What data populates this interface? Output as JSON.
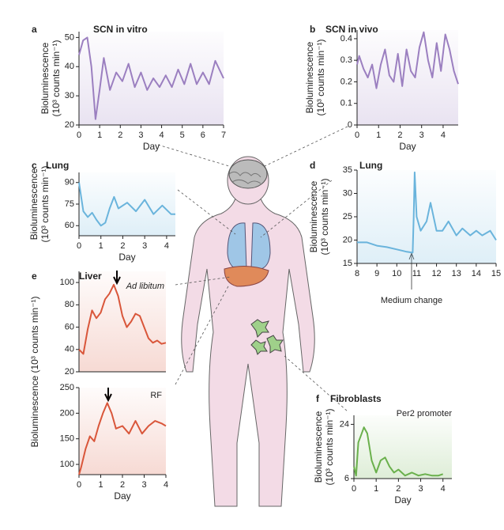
{
  "chart_data": [
    {
      "type": "line",
      "panel": "a",
      "title": "SCN in vitro",
      "xlabel": "Day",
      "ylabel": [
        "Bioluminescence",
        "(10³ counts min⁻¹)"
      ],
      "color": "#9b7fc0",
      "xlim": [
        0,
        7
      ],
      "xticks": [
        0,
        1,
        2,
        3,
        4,
        5,
        6,
        7
      ],
      "ylim": [
        20,
        52
      ],
      "yticks": [
        20,
        30,
        40,
        50
      ],
      "x": [
        0,
        0.2,
        0.4,
        0.6,
        0.8,
        1.0,
        1.2,
        1.5,
        1.8,
        2.1,
        2.4,
        2.7,
        3.0,
        3.3,
        3.6,
        3.9,
        4.2,
        4.5,
        4.8,
        5.1,
        5.4,
        5.7,
        6.0,
        6.3,
        6.6,
        7.0
      ],
      "values": [
        44,
        49,
        50,
        40,
        22,
        32,
        43,
        32,
        38,
        35,
        41,
        33,
        38,
        32,
        36,
        33,
        37,
        33,
        39,
        34,
        41,
        34,
        38,
        34,
        42,
        36
      ],
      "annotations": []
    },
    {
      "type": "line",
      "panel": "b",
      "title": "SCN in vivo",
      "xlabel": "Day",
      "ylabel": [
        "Bioluminescence",
        "(10³ counts min⁻¹)"
      ],
      "color": "#9b7fc0",
      "xlim": [
        0,
        4.7
      ],
      "xticks": [
        0,
        1,
        2,
        3,
        4
      ],
      "ylim": [
        0,
        0.44
      ],
      "yticks": [
        0,
        0.1,
        0.2,
        0.3,
        0.4
      ],
      "x": [
        0,
        0.1,
        0.3,
        0.5,
        0.7,
        0.9,
        1.1,
        1.3,
        1.5,
        1.7,
        1.9,
        2.1,
        2.3,
        2.5,
        2.7,
        2.9,
        3.1,
        3.3,
        3.5,
        3.7,
        3.9,
        4.1,
        4.3,
        4.5,
        4.7
      ],
      "values": [
        0.28,
        0.32,
        0.26,
        0.22,
        0.28,
        0.17,
        0.28,
        0.35,
        0.23,
        0.2,
        0.33,
        0.18,
        0.35,
        0.25,
        0.22,
        0.36,
        0.43,
        0.3,
        0.22,
        0.38,
        0.25,
        0.42,
        0.35,
        0.25,
        0.19
      ],
      "annotations": []
    },
    {
      "type": "line",
      "panel": "c",
      "title": "Lung",
      "xlabel": "Day",
      "ylabel": [
        "Bioluminescence",
        "(10³ counts min⁻¹)"
      ],
      "color": "#6ab4dc",
      "xlim": [
        0,
        4.4
      ],
      "xticks": [
        0,
        1,
        2,
        3,
        4
      ],
      "ylim": [
        53,
        97
      ],
      "yticks": [
        60,
        75,
        90
      ],
      "x": [
        0,
        0.2,
        0.4,
        0.6,
        0.8,
        1.0,
        1.2,
        1.4,
        1.6,
        1.8,
        2.2,
        2.6,
        3.0,
        3.4,
        3.8,
        4.2,
        4.4
      ],
      "values": [
        90,
        70,
        66,
        69,
        64,
        60,
        62,
        72,
        80,
        72,
        76,
        70,
        78,
        68,
        74,
        68,
        68
      ],
      "annotations": []
    },
    {
      "type": "line",
      "panel": "d",
      "title": "Lung",
      "xlabel": "",
      "ylabel": [
        "Bioluminescence",
        "(10³ counts min⁻¹)"
      ],
      "color": "#6ab4dc",
      "xlim": [
        8,
        15
      ],
      "xticks": [
        8,
        9,
        10,
        11,
        12,
        13,
        14,
        15
      ],
      "ylim": [
        15,
        35
      ],
      "yticks": [
        15,
        20,
        25,
        30,
        35
      ],
      "x": [
        8,
        8.5,
        9,
        9.5,
        10,
        10.5,
        10.8,
        10.85,
        10.9,
        11.0,
        11.2,
        11.5,
        11.7,
        12,
        12.3,
        12.6,
        13,
        13.3,
        13.7,
        14,
        14.3,
        14.7,
        15
      ],
      "values": [
        19.5,
        19.5,
        18.8,
        18.5,
        18,
        17.5,
        17.3,
        25,
        34.5,
        25,
        22,
        24,
        28,
        22,
        22,
        24,
        21,
        22.5,
        21,
        22,
        21,
        22,
        20
      ],
      "annotations": [
        "Medium change"
      ]
    },
    {
      "type": "line",
      "panel": "e",
      "title": "Liver",
      "xlabel": "",
      "ylabel": [
        "Bioluminescence (10³ counts min⁻¹)"
      ],
      "color": "#d9563a",
      "xlim": [
        0,
        4
      ],
      "xticks": [],
      "ylim": [
        20,
        110
      ],
      "yticks": [
        20,
        40,
        60,
        80,
        100
      ],
      "x": [
        0,
        0.2,
        0.4,
        0.6,
        0.8,
        1.0,
        1.2,
        1.4,
        1.6,
        1.8,
        2.0,
        2.2,
        2.4,
        2.6,
        2.8,
        3.0,
        3.2,
        3.4,
        3.6,
        3.8,
        4.0
      ],
      "values": [
        40,
        36,
        58,
        75,
        68,
        73,
        85,
        90,
        98,
        88,
        70,
        60,
        65,
        72,
        70,
        60,
        50,
        46,
        48,
        45,
        46
      ],
      "annotations": [
        "Ad libitum"
      ]
    },
    {
      "type": "line",
      "panel": "",
      "title": "",
      "xlabel": "Day",
      "ylabel": [],
      "color": "#d9563a",
      "xlim": [
        0,
        4
      ],
      "xticks": [
        0,
        1,
        2,
        3,
        4
      ],
      "ylim": [
        80,
        250
      ],
      "yticks": [
        100,
        150,
        200,
        250
      ],
      "x": [
        0,
        0.1,
        0.3,
        0.5,
        0.7,
        0.9,
        1.1,
        1.3,
        1.5,
        1.7,
        2.0,
        2.3,
        2.6,
        2.9,
        3.2,
        3.5,
        3.8,
        4.0
      ],
      "values": [
        80,
        95,
        130,
        155,
        145,
        175,
        200,
        220,
        200,
        170,
        175,
        160,
        185,
        160,
        175,
        185,
        180,
        175
      ],
      "annotations": [
        "RF"
      ]
    },
    {
      "type": "line",
      "panel": "f",
      "title": "Fibroblasts",
      "xlabel": "Day",
      "ylabel": [
        "Bioluminescence",
        "(10³ counts min⁻¹)"
      ],
      "color": "#6ab04c",
      "xlim": [
        0,
        4.4
      ],
      "xticks": [
        0,
        1,
        2,
        3,
        4
      ],
      "ylim": [
        6,
        27
      ],
      "yticks": [
        6,
        24
      ],
      "x": [
        0,
        0.1,
        0.2,
        0.3,
        0.45,
        0.6,
        0.8,
        1.0,
        1.2,
        1.4,
        1.6,
        1.8,
        2.0,
        2.3,
        2.6,
        2.9,
        3.2,
        3.5,
        3.8,
        4.0
      ],
      "values": [
        10,
        7,
        18,
        20,
        23,
        21,
        12,
        8,
        12,
        13,
        10,
        8,
        9,
        7,
        8,
        7,
        7.5,
        7,
        7,
        7.5
      ],
      "annotations": [
        "Per2 promoter"
      ]
    }
  ]
}
